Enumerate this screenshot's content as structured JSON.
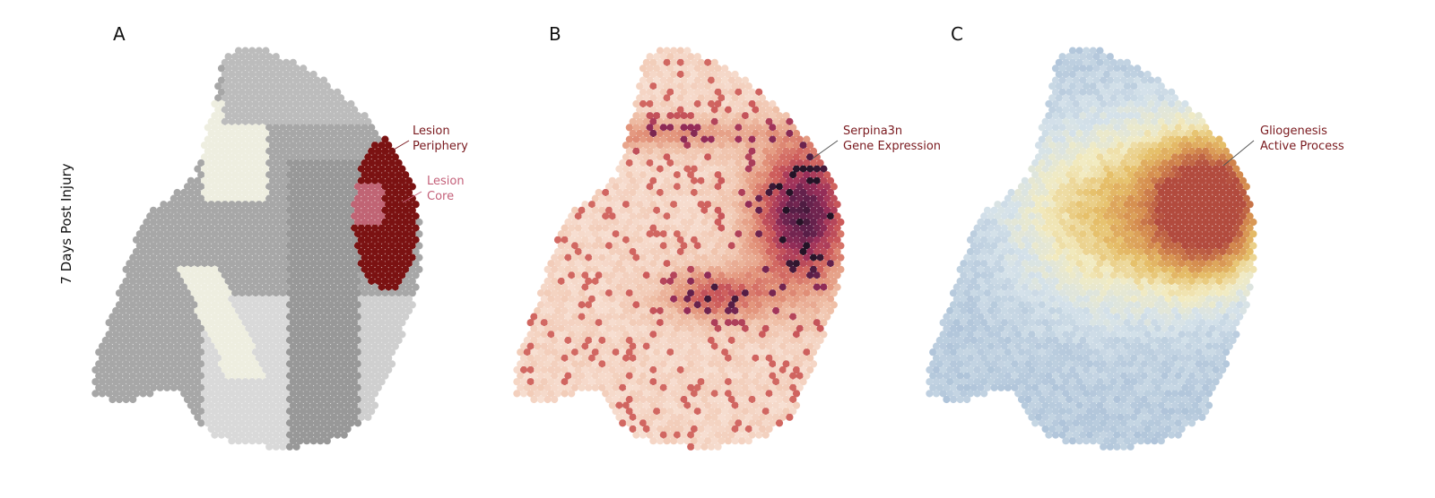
{
  "ylabel": "7 Days Post Injury",
  "panels": [
    {
      "letter": "A",
      "annotations": [
        {
          "lines": [
            "Lesion",
            "Periphery"
          ],
          "color": "#7a1a1f"
        },
        {
          "lines": [
            "Lesion",
            "Core"
          ],
          "color": "#c4617a"
        }
      ]
    },
    {
      "letter": "B",
      "annotations": [
        {
          "lines": [
            "Serpina3n",
            "Gene Expression"
          ],
          "color": "#7a1a1f"
        }
      ]
    },
    {
      "letter": "C",
      "annotations": [
        {
          "lines": [
            "Gliogenesis",
            "Active Process"
          ],
          "color": "#7a1a1f"
        }
      ]
    }
  ],
  "colors": {
    "regions": [
      "#a7a7a7",
      "#bcbcbc",
      "#cfcfcf",
      "#d9d9d9",
      "#eeeee0",
      "#989898"
    ],
    "lesion_periphery": "#7b1212",
    "lesion_core": "#c06474",
    "expression_scale": [
      "#f7dfd2",
      "#efc0a8",
      "#e2937a",
      "#cc5a5a",
      "#9c2f5a",
      "#5c1f4a",
      "#241326"
    ],
    "process_scale": [
      "#aec3d9",
      "#d5e2ea",
      "#f2ebc1",
      "#e6c06a",
      "#d58d4f",
      "#b24b3e"
    ]
  }
}
